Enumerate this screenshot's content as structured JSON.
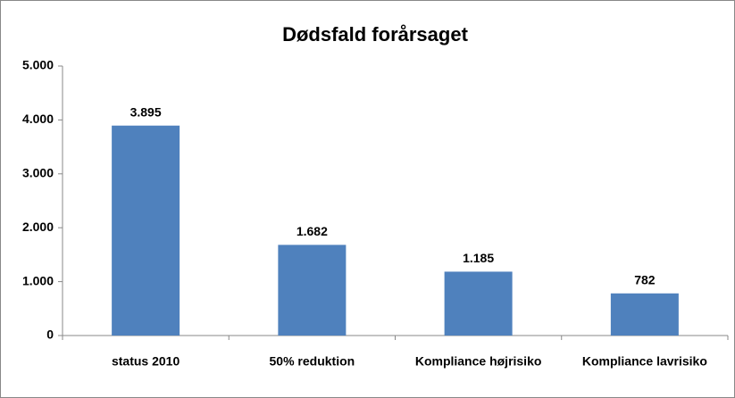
{
  "chart_data": {
    "type": "bar",
    "title": "Dødsfald forårsaget",
    "categories": [
      "status 2010",
      "50% reduktion",
      "Kompliance højrisiko",
      "Kompliance lavrisiko"
    ],
    "values": [
      3895,
      1682,
      1185,
      782
    ],
    "value_labels": [
      "3.895",
      "1.682",
      "1.185",
      "782"
    ],
    "color": "#4f81bd",
    "ylim": [
      0,
      5000
    ],
    "yticks": [
      0,
      {
        "value": 1000,
        "label": "1.000"
      },
      {
        "value": 2000,
        "label": "2.000"
      },
      {
        "value": 3000,
        "label": "3.000"
      },
      {
        "value": 4000,
        "label": "4.000"
      },
      {
        "value": 5000,
        "label": "5.000"
      }
    ],
    "grid": false
  }
}
